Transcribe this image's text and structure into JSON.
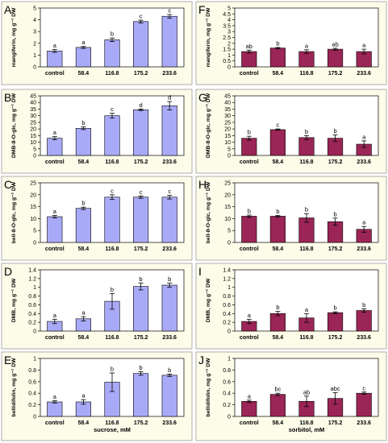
{
  "colors": {
    "sucrose": "#a9aaf7",
    "sorbitol": "#9b2556",
    "panel_bg": "#fdfce9",
    "axis": "#000000"
  },
  "chart_data": [
    {
      "panel": "A",
      "type": "bar",
      "categories": [
        "control",
        "58.4",
        "116.8",
        "175.2",
        "233.6"
      ],
      "values": [
        1.35,
        1.65,
        2.3,
        3.85,
        4.3
      ],
      "errors": [
        0.12,
        0.08,
        0.15,
        0.12,
        0.15
      ],
      "letters": [
        "a",
        "a",
        "b",
        "c",
        "c"
      ],
      "ylabel": "mangiferin, mg g⁻¹ DW",
      "ylim": [
        0,
        5
      ],
      "yticks": [
        0,
        1,
        2,
        3,
        4,
        5
      ],
      "xlabel": "",
      "color": "sucrose"
    },
    {
      "panel": "B",
      "type": "bar",
      "categories": [
        "control",
        "58.4",
        "116.8",
        "175.2",
        "233.6"
      ],
      "values": [
        13,
        20.5,
        30,
        34.5,
        37.5
      ],
      "errors": [
        1.2,
        1.0,
        1.8,
        0.6,
        3.2
      ],
      "letters": [
        "a",
        "b",
        "c",
        "d",
        "d"
      ],
      "ylabel": "DMB-8-O-glc, mg g⁻¹ DW",
      "ylim": [
        0,
        45
      ],
      "yticks": [
        0,
        5,
        10,
        15,
        20,
        25,
        30,
        35,
        40,
        45
      ],
      "xlabel": "",
      "color": "sucrose"
    },
    {
      "panel": "C",
      "type": "bar",
      "categories": [
        "control",
        "58.4",
        "116.8",
        "175.2",
        "233.6"
      ],
      "values": [
        10.8,
        14.3,
        19,
        19,
        19
      ],
      "errors": [
        0.5,
        0.5,
        1.0,
        0.5,
        0.8
      ],
      "letters": [
        "a",
        "b",
        "c",
        "c",
        "c"
      ],
      "ylabel": "bell-8-O-glc, mg g⁻¹ DW",
      "ylim": [
        0,
        25
      ],
      "yticks": [
        0,
        5,
        10,
        15,
        20,
        25
      ],
      "xlabel": "",
      "color": "sucrose"
    },
    {
      "panel": "D",
      "type": "bar",
      "categories": [
        "control",
        "58.4",
        "116.8",
        "175.2",
        "233.6"
      ],
      "values": [
        0.22,
        0.28,
        0.68,
        1.02,
        1.05
      ],
      "errors": [
        0.05,
        0.05,
        0.18,
        0.08,
        0.05
      ],
      "letters": [
        "a",
        "a",
        "b",
        "b",
        "b"
      ],
      "ylabel": "DMB, mg g⁻¹ DW",
      "ylim": [
        0,
        1.4
      ],
      "yticks": [
        0,
        0.2,
        0.4,
        0.6,
        0.8,
        1,
        1.2,
        1.4
      ],
      "xlabel": "",
      "color": "sucrose"
    },
    {
      "panel": "E",
      "type": "bar",
      "categories": [
        "control",
        "58.4",
        "116.8",
        "175.2",
        "233.6"
      ],
      "values": [
        0.25,
        0.25,
        0.59,
        0.74,
        0.71
      ],
      "errors": [
        0.02,
        0.04,
        0.16,
        0.03,
        0.02
      ],
      "letters": [
        "a",
        "a",
        "b",
        "b",
        "b"
      ],
      "ylabel": "bellidifolin, mg g⁻¹ DW",
      "ylim": [
        0,
        1
      ],
      "yticks": [
        0,
        0.2,
        0.4,
        0.6,
        0.8,
        1
      ],
      "xlabel": "sucrose, mM",
      "color": "sucrose"
    },
    {
      "panel": "F",
      "type": "bar",
      "categories": [
        "control",
        "58.4",
        "116.8",
        "175.2",
        "233.6"
      ],
      "values": [
        1.3,
        1.6,
        1.3,
        1.5,
        1.3
      ],
      "errors": [
        0.12,
        0.05,
        0.15,
        0.08,
        0.2
      ],
      "letters": [
        "ab",
        "b",
        "a",
        "ab",
        "a"
      ],
      "ylabel": "mangiferin, mg g⁻¹ DW",
      "ylim": [
        0,
        5
      ],
      "yticks": [
        0,
        0.5,
        1,
        1.5,
        2,
        2.5,
        3,
        3.5,
        4,
        4.5,
        5
      ],
      "xlabel": "",
      "color": "sorbitol"
    },
    {
      "panel": "G",
      "type": "bar",
      "categories": [
        "control",
        "58.4",
        "116.8",
        "175.2",
        "233.6"
      ],
      "values": [
        13,
        19.5,
        13.5,
        13,
        8.5
      ],
      "errors": [
        1.5,
        0.5,
        1.5,
        2.5,
        2.5
      ],
      "letters": [
        "b",
        "c",
        "b",
        "b",
        "a"
      ],
      "ylabel": "DMB-8-O-glc, mg g⁻¹ DW",
      "ylim": [
        0,
        45
      ],
      "yticks": [
        0,
        5,
        10,
        15,
        20,
        25,
        30,
        35,
        40,
        45
      ],
      "xlabel": "",
      "color": "sorbitol"
    },
    {
      "panel": "H",
      "type": "bar",
      "categories": [
        "control",
        "58.4",
        "116.8",
        "175.2",
        "233.6"
      ],
      "values": [
        11,
        11,
        10.3,
        8.7,
        5.5
      ],
      "errors": [
        0.5,
        0.3,
        1.8,
        1.5,
        1.2
      ],
      "letters": [
        "b",
        "b",
        "b",
        "b",
        "a"
      ],
      "ylabel": "bell-8-O-glc, mg g⁻¹ DW",
      "ylim": [
        0,
        25
      ],
      "yticks": [
        0,
        5,
        10,
        15,
        20,
        25
      ],
      "xlabel": "",
      "color": "sorbitol"
    },
    {
      "panel": "I",
      "type": "bar",
      "categories": [
        "control",
        "58.4",
        "116.8",
        "175.2",
        "233.6"
      ],
      "values": [
        0.22,
        0.4,
        0.3,
        0.42,
        0.47
      ],
      "errors": [
        0.05,
        0.05,
        0.1,
        0.02,
        0.04
      ],
      "letters": [
        "a",
        "b",
        "a",
        "b",
        "b"
      ],
      "ylabel": "DMB, mg g⁻¹ DW",
      "ylim": [
        0,
        1.4
      ],
      "yticks": [
        0,
        0.2,
        0.4,
        0.6,
        0.8,
        1,
        1.2,
        1.4
      ],
      "xlabel": "",
      "color": "sorbitol"
    },
    {
      "panel": "J",
      "type": "bar",
      "categories": [
        "control",
        "58.4",
        "116.8",
        "175.2",
        "233.6"
      ],
      "values": [
        0.26,
        0.38,
        0.26,
        0.31,
        0.4
      ],
      "errors": [
        0.02,
        0.02,
        0.09,
        0.1,
        0.02
      ],
      "letters": [
        "a",
        "bc",
        "ab",
        "abc",
        "c"
      ],
      "ylabel": "bellidifolin, mg g⁻¹ DW",
      "ylim": [
        0,
        1
      ],
      "yticks": [
        0,
        0.2,
        0.4,
        0.6,
        0.8,
        1
      ],
      "xlabel": "sorbitol, mM",
      "color": "sorbitol"
    }
  ]
}
